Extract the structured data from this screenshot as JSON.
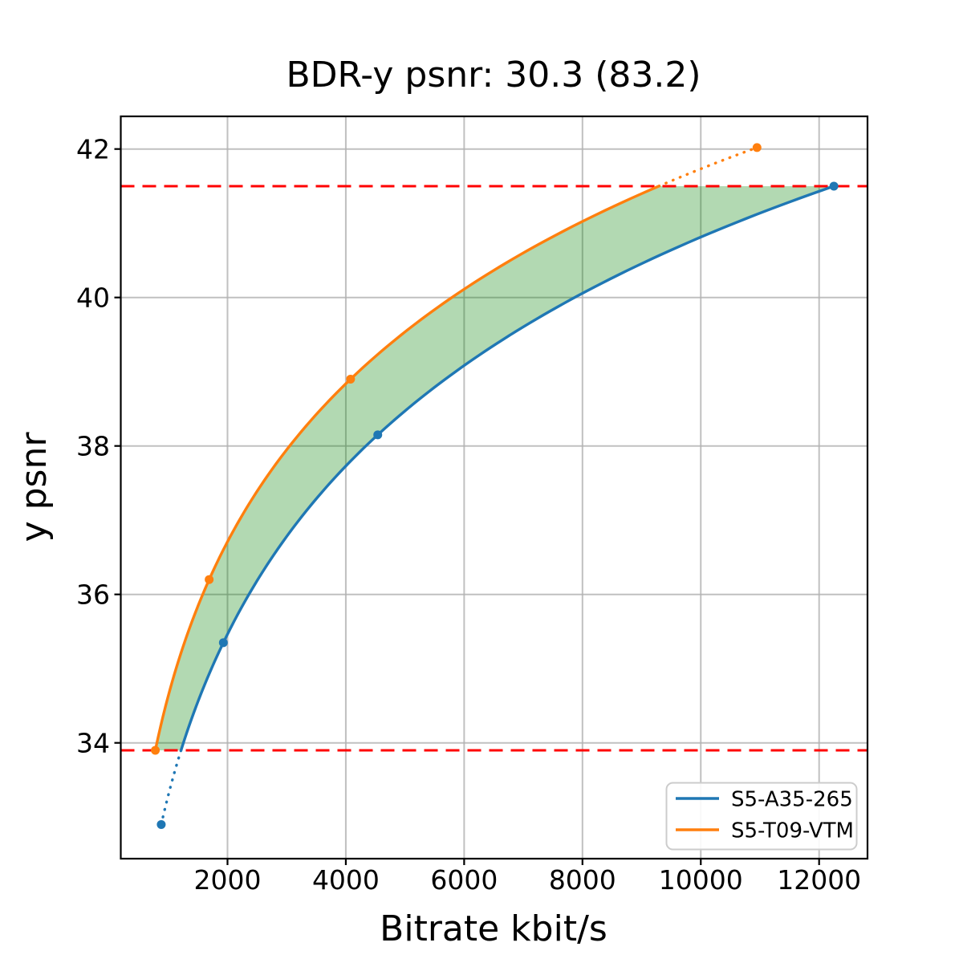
{
  "chart_data": {
    "type": "line",
    "title": "BDR-y psnr: 30.3 (83.2)",
    "xlabel": "Bitrate kbit/s",
    "ylabel": "y psnr",
    "xlim": [
      196,
      12818
    ],
    "ylim": [
      32.44,
      42.44
    ],
    "xticks": [
      2000,
      4000,
      6000,
      8000,
      10000,
      12000
    ],
    "yticks": [
      34,
      36,
      38,
      40,
      42
    ],
    "grid": true,
    "grid_color": "#b0b0b0",
    "legend_position": "lower right",
    "series": [
      {
        "name": "S5-A35-265",
        "color": "#1f77b4",
        "points": [
          [
            880,
            32.9
          ],
          [
            1930,
            35.35
          ],
          [
            4540,
            38.15
          ],
          [
            12250,
            41.5
          ]
        ]
      },
      {
        "name": "S5-T09-VTM",
        "color": "#ff7f0e",
        "points": [
          [
            780,
            33.9
          ],
          [
            1690,
            36.2
          ],
          [
            4080,
            38.9
          ],
          [
            10950,
            42.02
          ]
        ]
      }
    ],
    "integration_bounds": {
      "lower_psnr": 33.9,
      "upper_psnr": 41.5
    },
    "bound_line_color": "#ff0000",
    "shaded_region_color": "#008000",
    "shaded_region_opacity": 0.3
  }
}
